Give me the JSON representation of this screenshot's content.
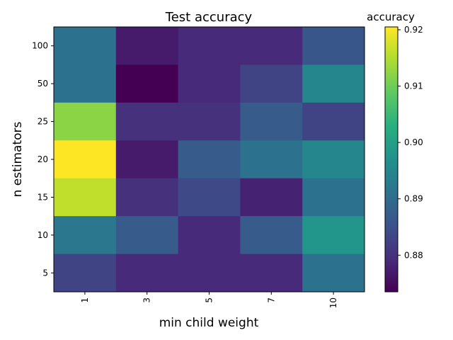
{
  "chart_data": {
    "type": "heatmap",
    "title": "Test accuracy",
    "xlabel": "min child weight",
    "ylabel": "n estimators",
    "x_categories": [
      "1",
      "3",
      "5",
      "7",
      "10"
    ],
    "y_categories": [
      "100",
      "50",
      "25",
      "20",
      "15",
      "10",
      "5"
    ],
    "values": [
      [
        0.891,
        0.877,
        0.879,
        0.879,
        0.886
      ],
      [
        0.891,
        0.8735,
        0.879,
        0.883,
        0.895
      ],
      [
        0.912,
        0.88,
        0.88,
        0.887,
        0.883
      ],
      [
        0.9205,
        0.877,
        0.887,
        0.891,
        0.895
      ],
      [
        0.916,
        0.88,
        0.884,
        0.878,
        0.891
      ],
      [
        0.892,
        0.887,
        0.879,
        0.887,
        0.898
      ],
      [
        0.883,
        0.879,
        0.879,
        0.879,
        0.891
      ]
    ],
    "colorbar": {
      "label": "accuracy",
      "vmin": 0.8735,
      "vmax": 0.9205,
      "ticks": [
        "0.88",
        "0.89",
        "0.90",
        "0.91",
        "0.92"
      ],
      "colormap": "viridis"
    },
    "grid": false
  }
}
